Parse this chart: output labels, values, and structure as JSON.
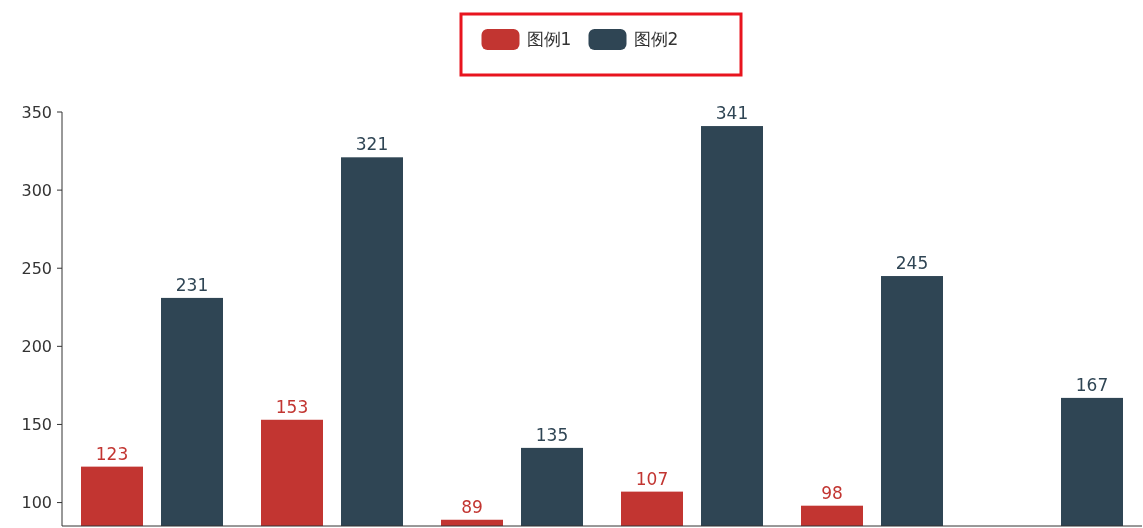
{
  "chart_data": {
    "type": "bar",
    "categories": [
      null,
      null,
      null,
      null,
      null,
      null
    ],
    "series": [
      {
        "name": "图例1",
        "color": "#c23531",
        "values": [
          123,
          153,
          89,
          107,
          98,
          null
        ]
      },
      {
        "name": "图例2",
        "color": "#2f4554",
        "values": [
          231,
          321,
          135,
          341,
          245,
          167
        ]
      }
    ],
    "ylim": [
      85,
      350
    ],
    "yticks": [
      100,
      150,
      200,
      250,
      300,
      350
    ],
    "data_labels": true,
    "legend": "top",
    "grid": false
  }
}
